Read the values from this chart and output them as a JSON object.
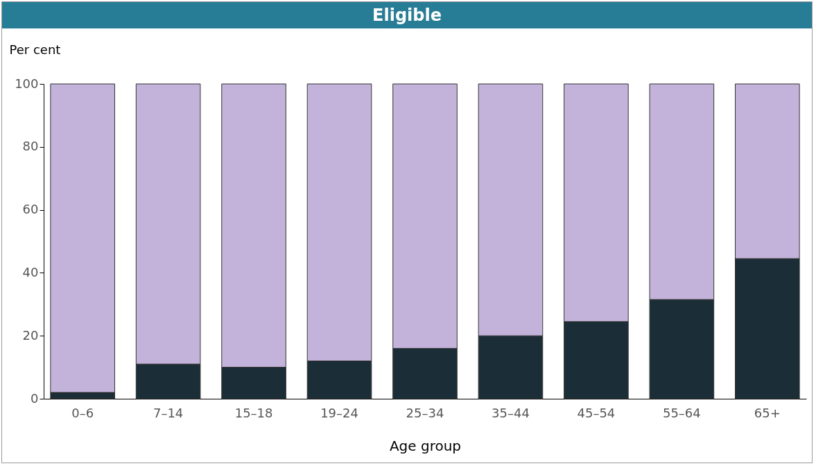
{
  "chart_data": {
    "type": "bar",
    "title": "Eligible",
    "xlabel": "Age group",
    "ylabel": "Per cent",
    "stacked": true,
    "categories": [
      "0–6",
      "7–14",
      "15–18",
      "19–24",
      "25–34",
      "35–44",
      "45–54",
      "55–64",
      "65+"
    ],
    "series": [
      {
        "color": "#1b2e37",
        "values": [
          2,
          11,
          10,
          12,
          16,
          20,
          24.5,
          31.5,
          44.5
        ]
      },
      {
        "color": "#c3b3da",
        "values": [
          98,
          89,
          90,
          88,
          84,
          80,
          75.5,
          68.5,
          55.5
        ]
      }
    ],
    "ylim": [
      0,
      100
    ],
    "yticks": [
      0,
      20,
      40,
      60,
      80,
      100
    ],
    "grid": false,
    "legend": false
  }
}
